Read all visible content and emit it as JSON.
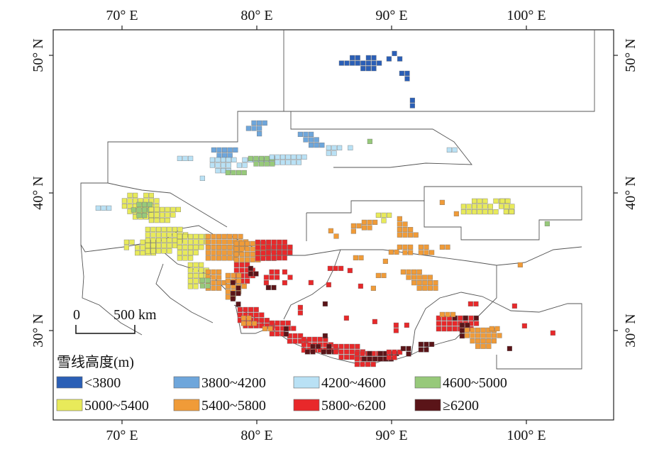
{
  "axes": {
    "lon_ticks": [
      "70° E",
      "80° E",
      "90° E",
      "100° E"
    ],
    "lat_ticks": [
      "50° N",
      "40° N",
      "30° N"
    ]
  },
  "scale_bar": {
    "zero": "0",
    "length_label": "500 km"
  },
  "legend": {
    "title": "雪线高度(m)",
    "items": [
      {
        "label": "<3800",
        "color": "#2b5fb6"
      },
      {
        "label": "3800~4200",
        "color": "#6ea6db"
      },
      {
        "label": "4200~4600",
        "color": "#b9e1f5"
      },
      {
        "label": "4600~5000",
        "color": "#97c97a"
      },
      {
        "label": "5000~5400",
        "color": "#e8ea5a"
      },
      {
        "label": "5400~5800",
        "color": "#f09b38"
      },
      {
        "label": "5800~6200",
        "color": "#e8282a"
      },
      {
        "label": "≥6200",
        "color": "#5a1418"
      }
    ]
  }
}
